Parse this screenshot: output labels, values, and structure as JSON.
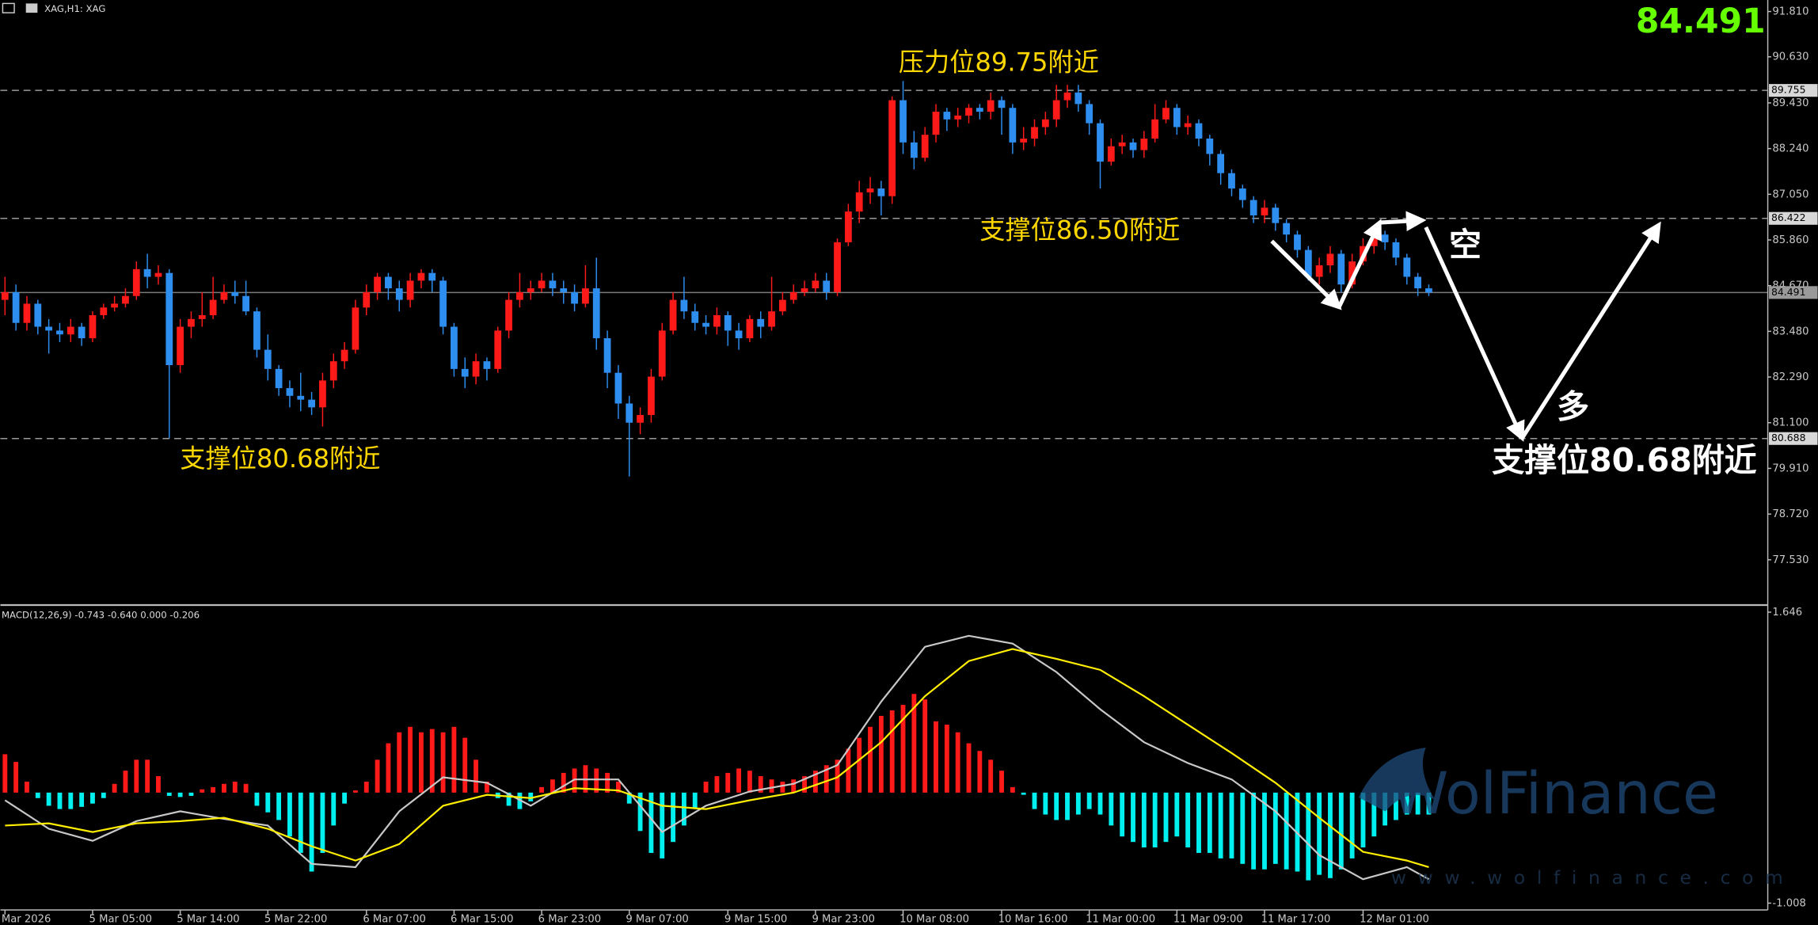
{
  "header": "XAG,H1: XAG",
  "chart_data": [
    {
      "type": "candlestick",
      "categories": [
        "Mar 2026",
        null,
        null,
        null,
        null,
        null,
        null,
        null,
        "5 Mar 05:00",
        null,
        null,
        null,
        null,
        null,
        null,
        null,
        "5 Mar 14:00",
        null,
        null,
        null,
        null,
        null,
        null,
        null,
        "5 Mar 22:00",
        null,
        null,
        null,
        null,
        null,
        null,
        null,
        null,
        "6 Mar 07:00",
        null,
        null,
        null,
        null,
        null,
        null,
        null,
        "6 Mar 15:00",
        null,
        null,
        null,
        null,
        null,
        null,
        null,
        "6 Mar 23:00",
        null,
        null,
        null,
        null,
        null,
        null,
        null,
        "9 Mar 07:00",
        null,
        null,
        null,
        null,
        null,
        null,
        null,
        null,
        "9 Mar 15:00",
        null,
        null,
        null,
        null,
        null,
        null,
        null,
        "9 Mar 23:00",
        null,
        null,
        null,
        null,
        null,
        null,
        null,
        "10 Mar 08:00",
        null,
        null,
        null,
        null,
        null,
        null,
        null,
        null,
        "10 Mar 16:00",
        null,
        null,
        null,
        null,
        null,
        null,
        null,
        "11 Mar 00:00",
        null,
        null,
        null,
        null,
        null,
        null,
        null,
        "11 Mar 09:00",
        null,
        null,
        null,
        null,
        null,
        null,
        null,
        "11 Mar 17:00",
        null,
        null,
        null,
        null,
        null,
        null,
        null,
        null,
        "12 Mar 01:00",
        null,
        null,
        null,
        null,
        null,
        null
      ],
      "open": [
        84.3,
        84.5,
        83.7,
        84.2,
        83.6,
        83.5,
        83.4,
        83.6,
        83.3,
        83.9,
        84.1,
        84.2,
        84.4,
        85.1,
        84.9,
        85.0,
        82.6,
        83.6,
        83.8,
        83.9,
        84.3,
        84.5,
        84.4,
        84.0,
        83.0,
        82.5,
        82.0,
        81.8,
        81.7,
        81.5,
        82.2,
        82.7,
        83.0,
        84.1,
        84.5,
        84.9,
        84.6,
        84.3,
        84.8,
        85.0,
        84.8,
        83.6,
        82.5,
        82.3,
        82.7,
        82.5,
        83.5,
        84.3,
        84.5,
        84.6,
        84.8,
        84.6,
        84.5,
        84.2,
        84.6,
        83.3,
        82.4,
        81.6,
        81.1,
        81.3,
        82.3,
        83.5,
        84.3,
        84.0,
        83.7,
        83.6,
        83.9,
        83.5,
        83.3,
        83.8,
        83.6,
        84.0,
        84.3,
        84.5,
        84.6,
        84.8,
        84.5,
        85.8,
        86.6,
        87.1,
        87.2,
        87.0,
        89.5,
        88.4,
        88.0,
        88.6,
        89.2,
        89.0,
        89.1,
        89.3,
        89.2,
        89.5,
        89.3,
        88.4,
        88.5,
        88.8,
        89.0,
        89.5,
        89.7,
        89.4,
        88.9,
        87.9,
        88.3,
        88.4,
        88.2,
        88.5,
        89.0,
        89.3,
        88.8,
        88.9,
        88.5,
        88.1,
        87.6,
        87.2,
        86.9,
        86.5,
        86.7,
        86.3,
        86.0,
        85.6,
        84.9,
        85.2,
        85.5,
        84.7,
        85.3,
        85.7,
        86.0,
        85.8,
        85.4,
        84.9,
        84.6
      ],
      "high": [
        84.9,
        84.7,
        84.4,
        84.3,
        83.8,
        83.7,
        83.8,
        83.7,
        84.0,
        84.2,
        84.4,
        84.6,
        85.3,
        85.5,
        85.2,
        85.1,
        83.8,
        84.0,
        84.5,
        84.9,
        84.7,
        84.8,
        84.8,
        84.1,
        83.4,
        82.6,
        82.2,
        82.4,
        81.9,
        82.4,
        82.9,
        83.2,
        84.3,
        84.7,
        85.0,
        85.0,
        84.8,
        85.0,
        85.1,
        85.1,
        84.9,
        83.7,
        82.8,
        82.9,
        82.8,
        83.6,
        84.5,
        85.0,
        84.8,
        85.0,
        85.0,
        84.8,
        84.7,
        85.2,
        85.4,
        83.5,
        82.6,
        81.8,
        81.5,
        82.5,
        83.7,
        84.5,
        84.9,
        84.2,
        83.9,
        84.1,
        84.0,
        83.7,
        83.9,
        84.0,
        84.9,
        84.5,
        84.7,
        84.8,
        85.0,
        85.0,
        85.9,
        86.8,
        87.4,
        87.5,
        87.4,
        89.6,
        90.0,
        88.7,
        88.8,
        89.4,
        89.3,
        89.3,
        89.4,
        89.4,
        89.7,
        89.6,
        89.4,
        88.8,
        89.0,
        89.2,
        89.9,
        89.9,
        89.9,
        89.5,
        89.0,
        88.5,
        88.6,
        88.5,
        88.7,
        89.4,
        89.5,
        89.4,
        89.1,
        89.0,
        88.6,
        88.2,
        87.7,
        87.3,
        87.0,
        86.9,
        86.8,
        86.4,
        86.1,
        85.7,
        85.4,
        85.7,
        85.6,
        85.5,
        85.9,
        86.2,
        86.1,
        85.9,
        85.5,
        85.0,
        84.7
      ],
      "low": [
        83.9,
        83.5,
        83.5,
        83.4,
        82.9,
        83.2,
        83.2,
        83.1,
        83.2,
        83.8,
        84.0,
        84.1,
        84.3,
        84.6,
        84.7,
        80.7,
        82.4,
        83.3,
        83.6,
        83.8,
        84.2,
        84.2,
        83.9,
        82.8,
        82.2,
        81.8,
        81.5,
        81.4,
        81.3,
        81.0,
        82.0,
        82.5,
        82.9,
        83.9,
        84.3,
        84.3,
        84.0,
        84.1,
        84.6,
        84.5,
        83.4,
        82.3,
        82.0,
        82.1,
        82.2,
        82.4,
        83.3,
        84.1,
        84.3,
        84.5,
        84.4,
        84.2,
        84.0,
        84.1,
        83.0,
        82.0,
        81.2,
        79.7,
        80.8,
        81.1,
        82.2,
        83.4,
        83.8,
        83.5,
        83.4,
        83.4,
        83.1,
        83.0,
        83.2,
        83.3,
        83.5,
        83.9,
        84.2,
        84.4,
        84.5,
        84.3,
        84.4,
        85.7,
        86.3,
        86.8,
        86.5,
        86.8,
        88.1,
        87.7,
        87.9,
        88.4,
        88.7,
        88.8,
        88.9,
        89.0,
        89.0,
        88.6,
        88.1,
        88.2,
        88.3,
        88.6,
        88.8,
        89.3,
        89.2,
        88.6,
        87.2,
        87.8,
        88.1,
        88.0,
        88.0,
        88.4,
        88.9,
        88.6,
        88.6,
        88.3,
        87.8,
        87.3,
        87.0,
        86.7,
        86.3,
        86.3,
        86.1,
        85.8,
        85.4,
        84.8,
        84.7,
        85.0,
        84.5,
        84.6,
        85.2,
        85.5,
        85.6,
        85.2,
        84.7,
        84.4,
        84.4
      ],
      "close": [
        84.5,
        83.7,
        84.2,
        83.6,
        83.5,
        83.4,
        83.6,
        83.3,
        83.9,
        84.1,
        84.2,
        84.4,
        85.1,
        84.9,
        85.0,
        82.6,
        83.6,
        83.8,
        83.9,
        84.3,
        84.5,
        84.4,
        84.0,
        83.0,
        82.5,
        82.0,
        81.8,
        81.7,
        81.5,
        82.2,
        82.7,
        83.0,
        84.1,
        84.5,
        84.9,
        84.6,
        84.3,
        84.8,
        85.0,
        84.8,
        83.6,
        82.5,
        82.3,
        82.7,
        82.5,
        83.5,
        84.3,
        84.5,
        84.6,
        84.8,
        84.6,
        84.5,
        84.2,
        84.6,
        83.3,
        82.4,
        81.6,
        81.1,
        81.3,
        82.3,
        83.5,
        84.3,
        84.0,
        83.7,
        83.6,
        83.9,
        83.5,
        83.3,
        83.8,
        83.6,
        84.0,
        84.3,
        84.5,
        84.6,
        84.8,
        84.5,
        85.8,
        86.6,
        87.1,
        87.2,
        87.0,
        89.5,
        88.4,
        88.0,
        88.6,
        89.2,
        89.0,
        89.1,
        89.3,
        89.2,
        89.5,
        89.3,
        88.4,
        88.5,
        88.8,
        89.0,
        89.5,
        89.7,
        89.4,
        88.9,
        87.9,
        88.3,
        88.4,
        88.2,
        88.5,
        89.0,
        89.3,
        88.8,
        88.9,
        88.5,
        88.1,
        87.6,
        87.2,
        86.9,
        86.5,
        86.7,
        86.3,
        86.0,
        85.6,
        84.9,
        85.2,
        85.5,
        84.7,
        85.3,
        85.7,
        86.0,
        85.8,
        85.4,
        84.9,
        84.6,
        84.491
      ],
      "up_color": "#ff1a1a",
      "down_color": "#2e8ef0",
      "xlim": [
        -0.42,
        160.95
      ],
      "ylim": [
        76.38,
        92.11
      ],
      "yticks": [
        {
          "value": 91.81,
          "label": "91.810"
        },
        {
          "value": 90.63,
          "label": "90.630"
        },
        {
          "value": 89.43,
          "label": "89.430"
        },
        {
          "value": 88.24,
          "label": "88.240"
        },
        {
          "value": 87.05,
          "label": "87.050"
        },
        {
          "value": 85.86,
          "label": "85.860"
        },
        {
          "value": 84.67,
          "label": "84.670"
        },
        {
          "value": 83.48,
          "label": "83.480"
        },
        {
          "value": 82.29,
          "label": "82.290"
        },
        {
          "value": 81.1,
          "label": "81.100"
        },
        {
          "value": 79.91,
          "label": "79.910"
        },
        {
          "value": 78.72,
          "label": "78.720"
        },
        {
          "value": 77.53,
          "label": "77.530"
        }
      ],
      "price_lines": [
        {
          "value": 89.755,
          "style": "dashed"
        },
        {
          "value": 86.422,
          "style": "dashed"
        },
        {
          "value": 84.491,
          "style": "solid"
        },
        {
          "value": 80.688,
          "style": "dashed"
        }
      ],
      "last_price": 84.491,
      "annotations": [
        "压力位89.75附近",
        "支撑位86.50附近",
        "支撑位80.68附近",
        "空",
        "多",
        "支撑位80.68附近"
      ],
      "watermark": [
        "WolFinance",
        "www.wolfinance.com"
      ]
    },
    {
      "type": "macd",
      "label": "MACD(12,26,9) -0.743 -0.640 0.000 -0.206",
      "xlim": [
        -0.42,
        160.95
      ],
      "ylim": [
        -1.07,
        1.7
      ],
      "yticks": [
        1.646,
        -1.008
      ],
      "histogram": [
        0.35,
        0.28,
        0.1,
        -0.05,
        -0.12,
        -0.15,
        -0.15,
        -0.13,
        -0.1,
        -0.05,
        0.08,
        0.2,
        0.3,
        0.3,
        0.15,
        -0.03,
        -0.04,
        -0.03,
        0.03,
        0.05,
        0.08,
        0.1,
        0.08,
        -0.12,
        -0.18,
        -0.25,
        -0.4,
        -0.55,
        -0.72,
        -0.55,
        -0.3,
        -0.1,
        0.02,
        0.1,
        0.3,
        0.45,
        0.55,
        0.6,
        0.55,
        0.58,
        0.55,
        0.6,
        0.5,
        0.3,
        0.1,
        -0.05,
        -0.12,
        -0.15,
        -0.08,
        0.05,
        0.12,
        0.18,
        0.22,
        0.25,
        0.22,
        0.18,
        0.1,
        -0.1,
        -0.35,
        -0.55,
        -0.6,
        -0.45,
        -0.3,
        -0.15,
        0.1,
        0.15,
        0.18,
        0.22,
        0.2,
        0.15,
        0.12,
        0.1,
        0.12,
        0.15,
        0.2,
        0.25,
        0.3,
        0.4,
        0.5,
        0.6,
        0.7,
        0.75,
        0.8,
        0.9,
        0.85,
        0.65,
        0.62,
        0.55,
        0.45,
        0.38,
        0.3,
        0.2,
        0.05,
        -0.02,
        -0.15,
        -0.2,
        -0.25,
        -0.25,
        -0.2,
        -0.15,
        -0.2,
        -0.3,
        -0.4,
        -0.45,
        -0.5,
        -0.5,
        -0.45,
        -0.4,
        -0.5,
        -0.55,
        -0.55,
        -0.6,
        -0.6,
        -0.65,
        -0.7,
        -0.7,
        -0.65,
        -0.7,
        -0.72,
        -0.8,
        -0.75,
        -0.78,
        -0.7,
        -0.6,
        -0.5,
        -0.4,
        -0.3,
        -0.25,
        -0.2,
        -0.2,
        -0.2
      ],
      "pos_color": "#ff1a1a",
      "neg_color": "#00f0f0",
      "series": [
        {
          "color": "#c8c8c8",
          "x": [
            0,
            4,
            8,
            12,
            16,
            20,
            24,
            28,
            32,
            36,
            40,
            44,
            48,
            52,
            56,
            60,
            64,
            68,
            72,
            76,
            80,
            84,
            88,
            92,
            96,
            100,
            104,
            108,
            112,
            116,
            120,
            124,
            128,
            130
          ],
          "values": [
            -0.07,
            -0.33,
            -0.44,
            -0.26,
            -0.17,
            -0.24,
            -0.3,
            -0.65,
            -0.68,
            -0.17,
            0.14,
            0.09,
            -0.12,
            0.12,
            0.12,
            -0.36,
            -0.12,
            0.01,
            0.08,
            0.25,
            0.83,
            1.33,
            1.43,
            1.36,
            1.1,
            0.76,
            0.46,
            0.27,
            0.12,
            -0.17,
            -0.57,
            -0.79,
            -0.68,
            -0.79
          ]
        },
        {
          "color": "#ffee00",
          "x": [
            0,
            4,
            8,
            12,
            16,
            20,
            24,
            28,
            32,
            36,
            40,
            44,
            48,
            52,
            56,
            60,
            64,
            68,
            72,
            76,
            80,
            84,
            88,
            92,
            96,
            100,
            104,
            108,
            112,
            116,
            120,
            124,
            128,
            130
          ],
          "values": [
            -0.3,
            -0.28,
            -0.36,
            -0.28,
            -0.26,
            -0.23,
            -0.33,
            -0.49,
            -0.62,
            -0.47,
            -0.12,
            -0.02,
            -0.05,
            0.04,
            0.02,
            -0.12,
            -0.15,
            -0.07,
            0.0,
            0.14,
            0.46,
            0.88,
            1.2,
            1.31,
            1.22,
            1.12,
            0.88,
            0.62,
            0.36,
            0.09,
            -0.23,
            -0.54,
            -0.62,
            -0.68
          ]
        }
      ]
    }
  ]
}
